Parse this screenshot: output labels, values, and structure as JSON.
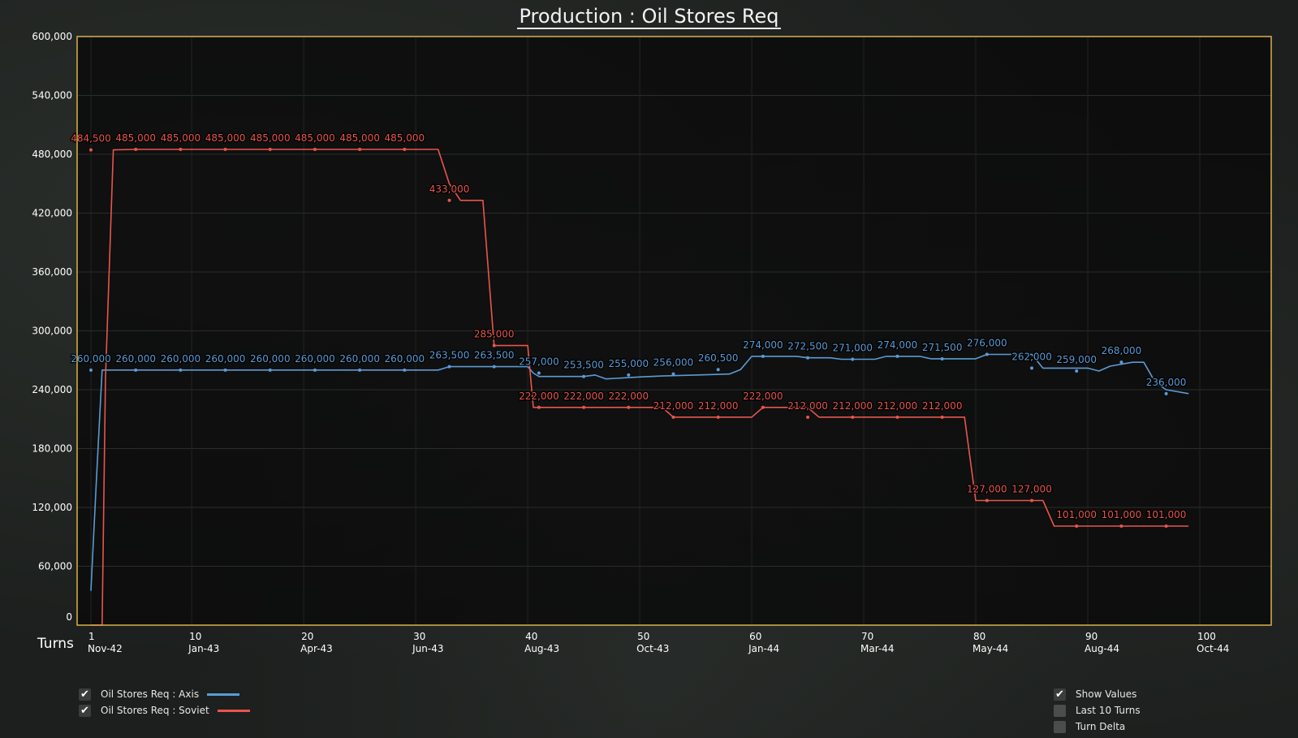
{
  "title": "Production : Oil Stores Req",
  "chart_data": {
    "type": "line",
    "xlabel": "Turns",
    "xlim": [
      0,
      106
    ],
    "ylim": [
      0,
      600000
    ],
    "y_ticks": [
      0,
      60000,
      120000,
      180000,
      240000,
      300000,
      360000,
      420000,
      480000,
      540000,
      600000
    ],
    "y_tick_labels": [
      "0",
      "60,000",
      "120,000",
      "180,000",
      "240,000",
      "300,000",
      "360,000",
      "420,000",
      "480,000",
      "540,000",
      "600,000"
    ],
    "x_ticks": [
      {
        "turn": 1,
        "label": "1",
        "date": "Nov-42"
      },
      {
        "turn": 10,
        "label": "10",
        "date": "Jan-43"
      },
      {
        "turn": 20,
        "label": "20",
        "date": "Apr-43"
      },
      {
        "turn": 30,
        "label": "30",
        "date": "Jun-43"
      },
      {
        "turn": 40,
        "label": "40",
        "date": "Aug-43"
      },
      {
        "turn": 50,
        "label": "50",
        "date": "Oct-43"
      },
      {
        "turn": 60,
        "label": "60",
        "date": "Jan-44"
      },
      {
        "turn": 70,
        "label": "70",
        "date": "Mar-44"
      },
      {
        "turn": 80,
        "label": "80",
        "date": "May-44"
      },
      {
        "turn": 90,
        "label": "90",
        "date": "Aug-44"
      },
      {
        "turn": 100,
        "label": "100",
        "date": "Oct-44"
      }
    ],
    "grid": true,
    "series": [
      {
        "name": "Oil Stores Req : Axis",
        "color": "#5b9bd5",
        "points": [
          [
            1,
            35000
          ],
          [
            1.5,
            150000
          ],
          [
            2,
            260000
          ],
          [
            3,
            260000
          ],
          [
            5,
            260000
          ],
          [
            10,
            260000
          ],
          [
            15,
            260000
          ],
          [
            20,
            260000
          ],
          [
            25,
            260000
          ],
          [
            30,
            260000
          ],
          [
            32,
            260000
          ],
          [
            33,
            263500
          ],
          [
            35,
            263500
          ],
          [
            38,
            263500
          ],
          [
            40,
            263500
          ],
          [
            40.5,
            257000
          ],
          [
            41,
            253500
          ],
          [
            45,
            253500
          ],
          [
            46,
            255000
          ],
          [
            47,
            251000
          ],
          [
            50,
            253000
          ],
          [
            52,
            254000
          ],
          [
            55,
            255000
          ],
          [
            58,
            256000
          ],
          [
            59,
            260500
          ],
          [
            60,
            274000
          ],
          [
            63,
            274000
          ],
          [
            64,
            274000
          ],
          [
            65,
            272500
          ],
          [
            67,
            272500
          ],
          [
            68,
            271000
          ],
          [
            70,
            271000
          ],
          [
            71,
            271000
          ],
          [
            72,
            274000
          ],
          [
            74,
            274000
          ],
          [
            75,
            274000
          ],
          [
            76,
            271500
          ],
          [
            78,
            271500
          ],
          [
            80,
            271500
          ],
          [
            81,
            276000
          ],
          [
            84,
            276000
          ],
          [
            85,
            276000
          ],
          [
            86,
            262000
          ],
          [
            89,
            262000
          ],
          [
            90,
            262000
          ],
          [
            91,
            259000
          ],
          [
            92,
            264000
          ],
          [
            94,
            268000
          ],
          [
            95,
            268000
          ],
          [
            96,
            248000
          ],
          [
            97,
            240000
          ],
          [
            99,
            236000
          ]
        ],
        "markers": [
          {
            "turn": 1,
            "value": 260000,
            "label": "260,000"
          },
          {
            "turn": 5,
            "value": 260000,
            "label": "260,000"
          },
          {
            "turn": 9,
            "value": 260000,
            "label": "260,000"
          },
          {
            "turn": 13,
            "value": 260000,
            "label": "260,000"
          },
          {
            "turn": 17,
            "value": 260000,
            "label": "260,000"
          },
          {
            "turn": 21,
            "value": 260000,
            "label": "260,000"
          },
          {
            "turn": 25,
            "value": 260000,
            "label": "260,000"
          },
          {
            "turn": 29,
            "value": 260000,
            "label": "260,000"
          },
          {
            "turn": 33,
            "value": 263500,
            "label": "263,500"
          },
          {
            "turn": 37,
            "value": 263500,
            "label": "263,500"
          },
          {
            "turn": 41,
            "value": 257000,
            "label": "257,000"
          },
          {
            "turn": 45,
            "value": 253500,
            "label": "253,500"
          },
          {
            "turn": 49,
            "value": 255000,
            "label": "255,000"
          },
          {
            "turn": 53,
            "value": 256000,
            "label": "256,000"
          },
          {
            "turn": 57,
            "value": 260500,
            "label": "260,500"
          },
          {
            "turn": 61,
            "value": 274000,
            "label": "274,000"
          },
          {
            "turn": 65,
            "value": 272500,
            "label": "272,500"
          },
          {
            "turn": 69,
            "value": 271000,
            "label": "271,000"
          },
          {
            "turn": 73,
            "value": 274000,
            "label": "274,000"
          },
          {
            "turn": 77,
            "value": 271500,
            "label": "271,500"
          },
          {
            "turn": 81,
            "value": 276000,
            "label": "276,000"
          },
          {
            "turn": 85,
            "value": 262000,
            "label": "262,000"
          },
          {
            "turn": 89,
            "value": 259000,
            "label": "259,000"
          },
          {
            "turn": 93,
            "value": 268000,
            "label": "268,000"
          },
          {
            "turn": 97,
            "value": 236000,
            "label": "236,000"
          }
        ]
      },
      {
        "name": "Oil Stores Req : Soviet",
        "color": "#e8554e",
        "points": [
          [
            1,
            0
          ],
          [
            2,
            0
          ],
          [
            2.3,
            250000
          ],
          [
            3,
            484500
          ],
          [
            5,
            485000
          ],
          [
            10,
            485000
          ],
          [
            15,
            485000
          ],
          [
            20,
            485000
          ],
          [
            25,
            485000
          ],
          [
            30,
            485000
          ],
          [
            32,
            485000
          ],
          [
            33,
            450000
          ],
          [
            34,
            433000
          ],
          [
            36,
            433000
          ],
          [
            37,
            285000
          ],
          [
            38,
            285000
          ],
          [
            39,
            285000
          ],
          [
            40,
            285000
          ],
          [
            40.5,
            222000
          ],
          [
            44,
            222000
          ],
          [
            48,
            222000
          ],
          [
            50,
            222000
          ],
          [
            52,
            222000
          ],
          [
            53,
            212000
          ],
          [
            56,
            212000
          ],
          [
            58,
            212000
          ],
          [
            60,
            212000
          ],
          [
            61,
            222000
          ],
          [
            64,
            222000
          ],
          [
            65,
            222000
          ],
          [
            66,
            212000
          ],
          [
            70,
            212000
          ],
          [
            74,
            212000
          ],
          [
            78,
            212000
          ],
          [
            79,
            212000
          ],
          [
            80,
            127000
          ],
          [
            83,
            127000
          ],
          [
            86,
            127000
          ],
          [
            87,
            101000
          ],
          [
            90,
            101000
          ],
          [
            94,
            101000
          ],
          [
            99,
            101000
          ]
        ],
        "markers": [
          {
            "turn": 1,
            "value": 484500,
            "label": "484,500"
          },
          {
            "turn": 5,
            "value": 485000,
            "label": "485,000"
          },
          {
            "turn": 9,
            "value": 485000,
            "label": "485,000"
          },
          {
            "turn": 13,
            "value": 485000,
            "label": "485,000"
          },
          {
            "turn": 17,
            "value": 485000,
            "label": "485,000"
          },
          {
            "turn": 21,
            "value": 485000,
            "label": "485,000"
          },
          {
            "turn": 25,
            "value": 485000,
            "label": "485,000"
          },
          {
            "turn": 29,
            "value": 485000,
            "label": "485,000"
          },
          {
            "turn": 33,
            "value": 433000,
            "label": "433,000"
          },
          {
            "turn": 37,
            "value": 285000,
            "label": "285,000"
          },
          {
            "turn": 41,
            "value": 222000,
            "label": "222,000"
          },
          {
            "turn": 45,
            "value": 222000,
            "label": "222,000"
          },
          {
            "turn": 49,
            "value": 222000,
            "label": "222,000"
          },
          {
            "turn": 53,
            "value": 212000,
            "label": "212,000"
          },
          {
            "turn": 57,
            "value": 212000,
            "label": "212,000"
          },
          {
            "turn": 61,
            "value": 222000,
            "label": "222,000"
          },
          {
            "turn": 65,
            "value": 212000,
            "label": "212,000"
          },
          {
            "turn": 69,
            "value": 212000,
            "label": "212,000"
          },
          {
            "turn": 73,
            "value": 212000,
            "label": "212,000"
          },
          {
            "turn": 77,
            "value": 212000,
            "label": "212,000"
          },
          {
            "turn": 81,
            "value": 127000,
            "label": "127,000"
          },
          {
            "turn": 85,
            "value": 127000,
            "label": "127,000"
          },
          {
            "turn": 89,
            "value": 101000,
            "label": "101,000"
          },
          {
            "turn": 93,
            "value": 101000,
            "label": "101,000"
          },
          {
            "turn": 97,
            "value": 101000,
            "label": "101,000"
          }
        ]
      }
    ]
  },
  "legend": {
    "items": [
      {
        "label": "Oil Stores Req : Axis",
        "checked": true,
        "color": "#5b9bd5"
      },
      {
        "label": "Oil Stores Req : Soviet",
        "checked": true,
        "color": "#e8554e"
      }
    ]
  },
  "options": {
    "show_values": {
      "label": "Show Values",
      "checked": true
    },
    "last_10_turns": {
      "label": "Last 10 Turns",
      "checked": false
    },
    "turn_delta": {
      "label": "Turn Delta",
      "checked": false
    }
  },
  "colors": {
    "plot_border": "#d9b24a",
    "plot_bg": "#0a0a0a"
  }
}
